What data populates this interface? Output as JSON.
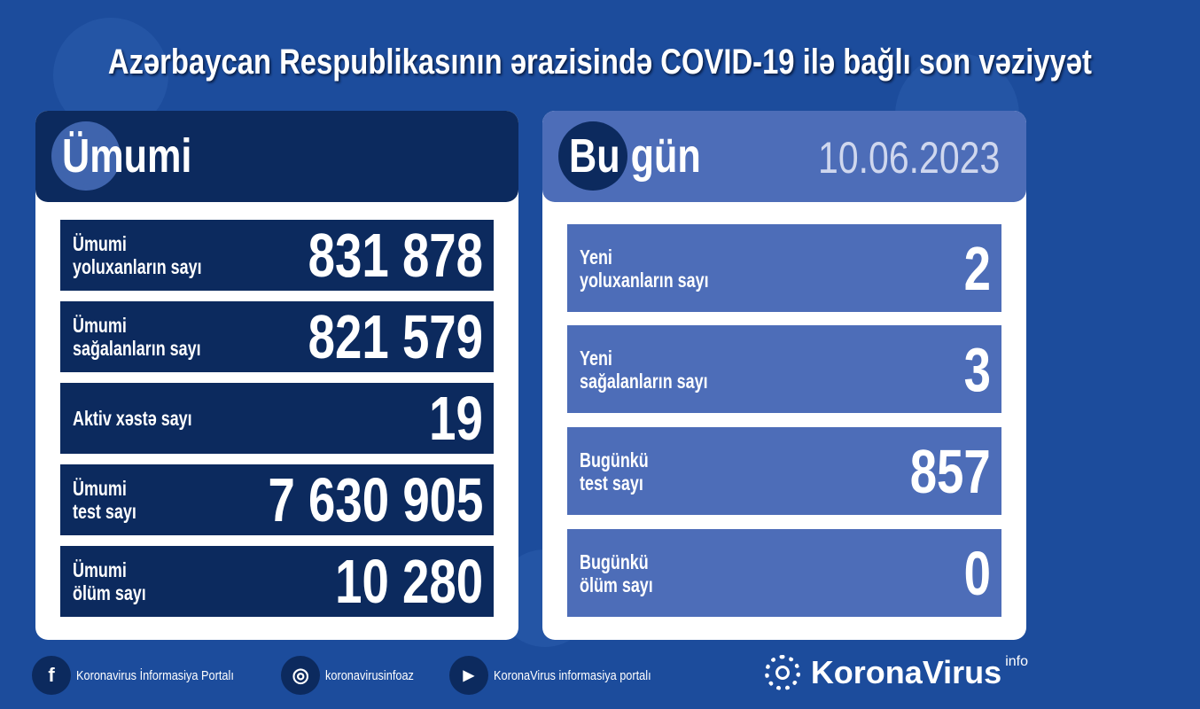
{
  "title": "Azərbaycan Respublikasının ərazisində COVID-19 ilə bağlı son vəziyyət",
  "total": {
    "heading": "Ümumi",
    "rows": [
      {
        "label": "Ümumi\nyoluxanların sayı",
        "value": "831 878"
      },
      {
        "label": "Ümumi\nsağalanların sayı",
        "value": "821 579"
      },
      {
        "label": "Aktiv xəstə sayı",
        "value": "19"
      },
      {
        "label": "Ümumi\ntest sayı",
        "value": "7 630 905"
      },
      {
        "label": "Ümumi\nölüm sayı",
        "value": "10 280"
      }
    ]
  },
  "today": {
    "heading": "Bu gün",
    "date": "10.06.2023",
    "rows": [
      {
        "label": "Yeni\nyoluxanların sayı",
        "value": "2"
      },
      {
        "label": "Yeni\nsağalanların sayı",
        "value": "3"
      },
      {
        "label": "Bugünkü\ntest sayı",
        "value": "857"
      },
      {
        "label": "Bugünkü\nölüm sayı",
        "value": "0"
      }
    ]
  },
  "footer": {
    "socials": [
      {
        "icon": "facebook-icon",
        "glyph": "f",
        "text": "Koronavirus İnformasiya Portalı"
      },
      {
        "icon": "instagram-icon",
        "glyph": "◎",
        "text": "koronavirusinfoaz"
      },
      {
        "icon": "youtube-icon",
        "glyph": "▶",
        "text": "KoronaVirus informasiya portalı"
      }
    ],
    "brand": "KoronaVirus",
    "brand_sup": "info"
  },
  "colors": {
    "background": "#1c4c9c",
    "navy": "#0c2a5e",
    "light_blue": "#4d6db8"
  }
}
